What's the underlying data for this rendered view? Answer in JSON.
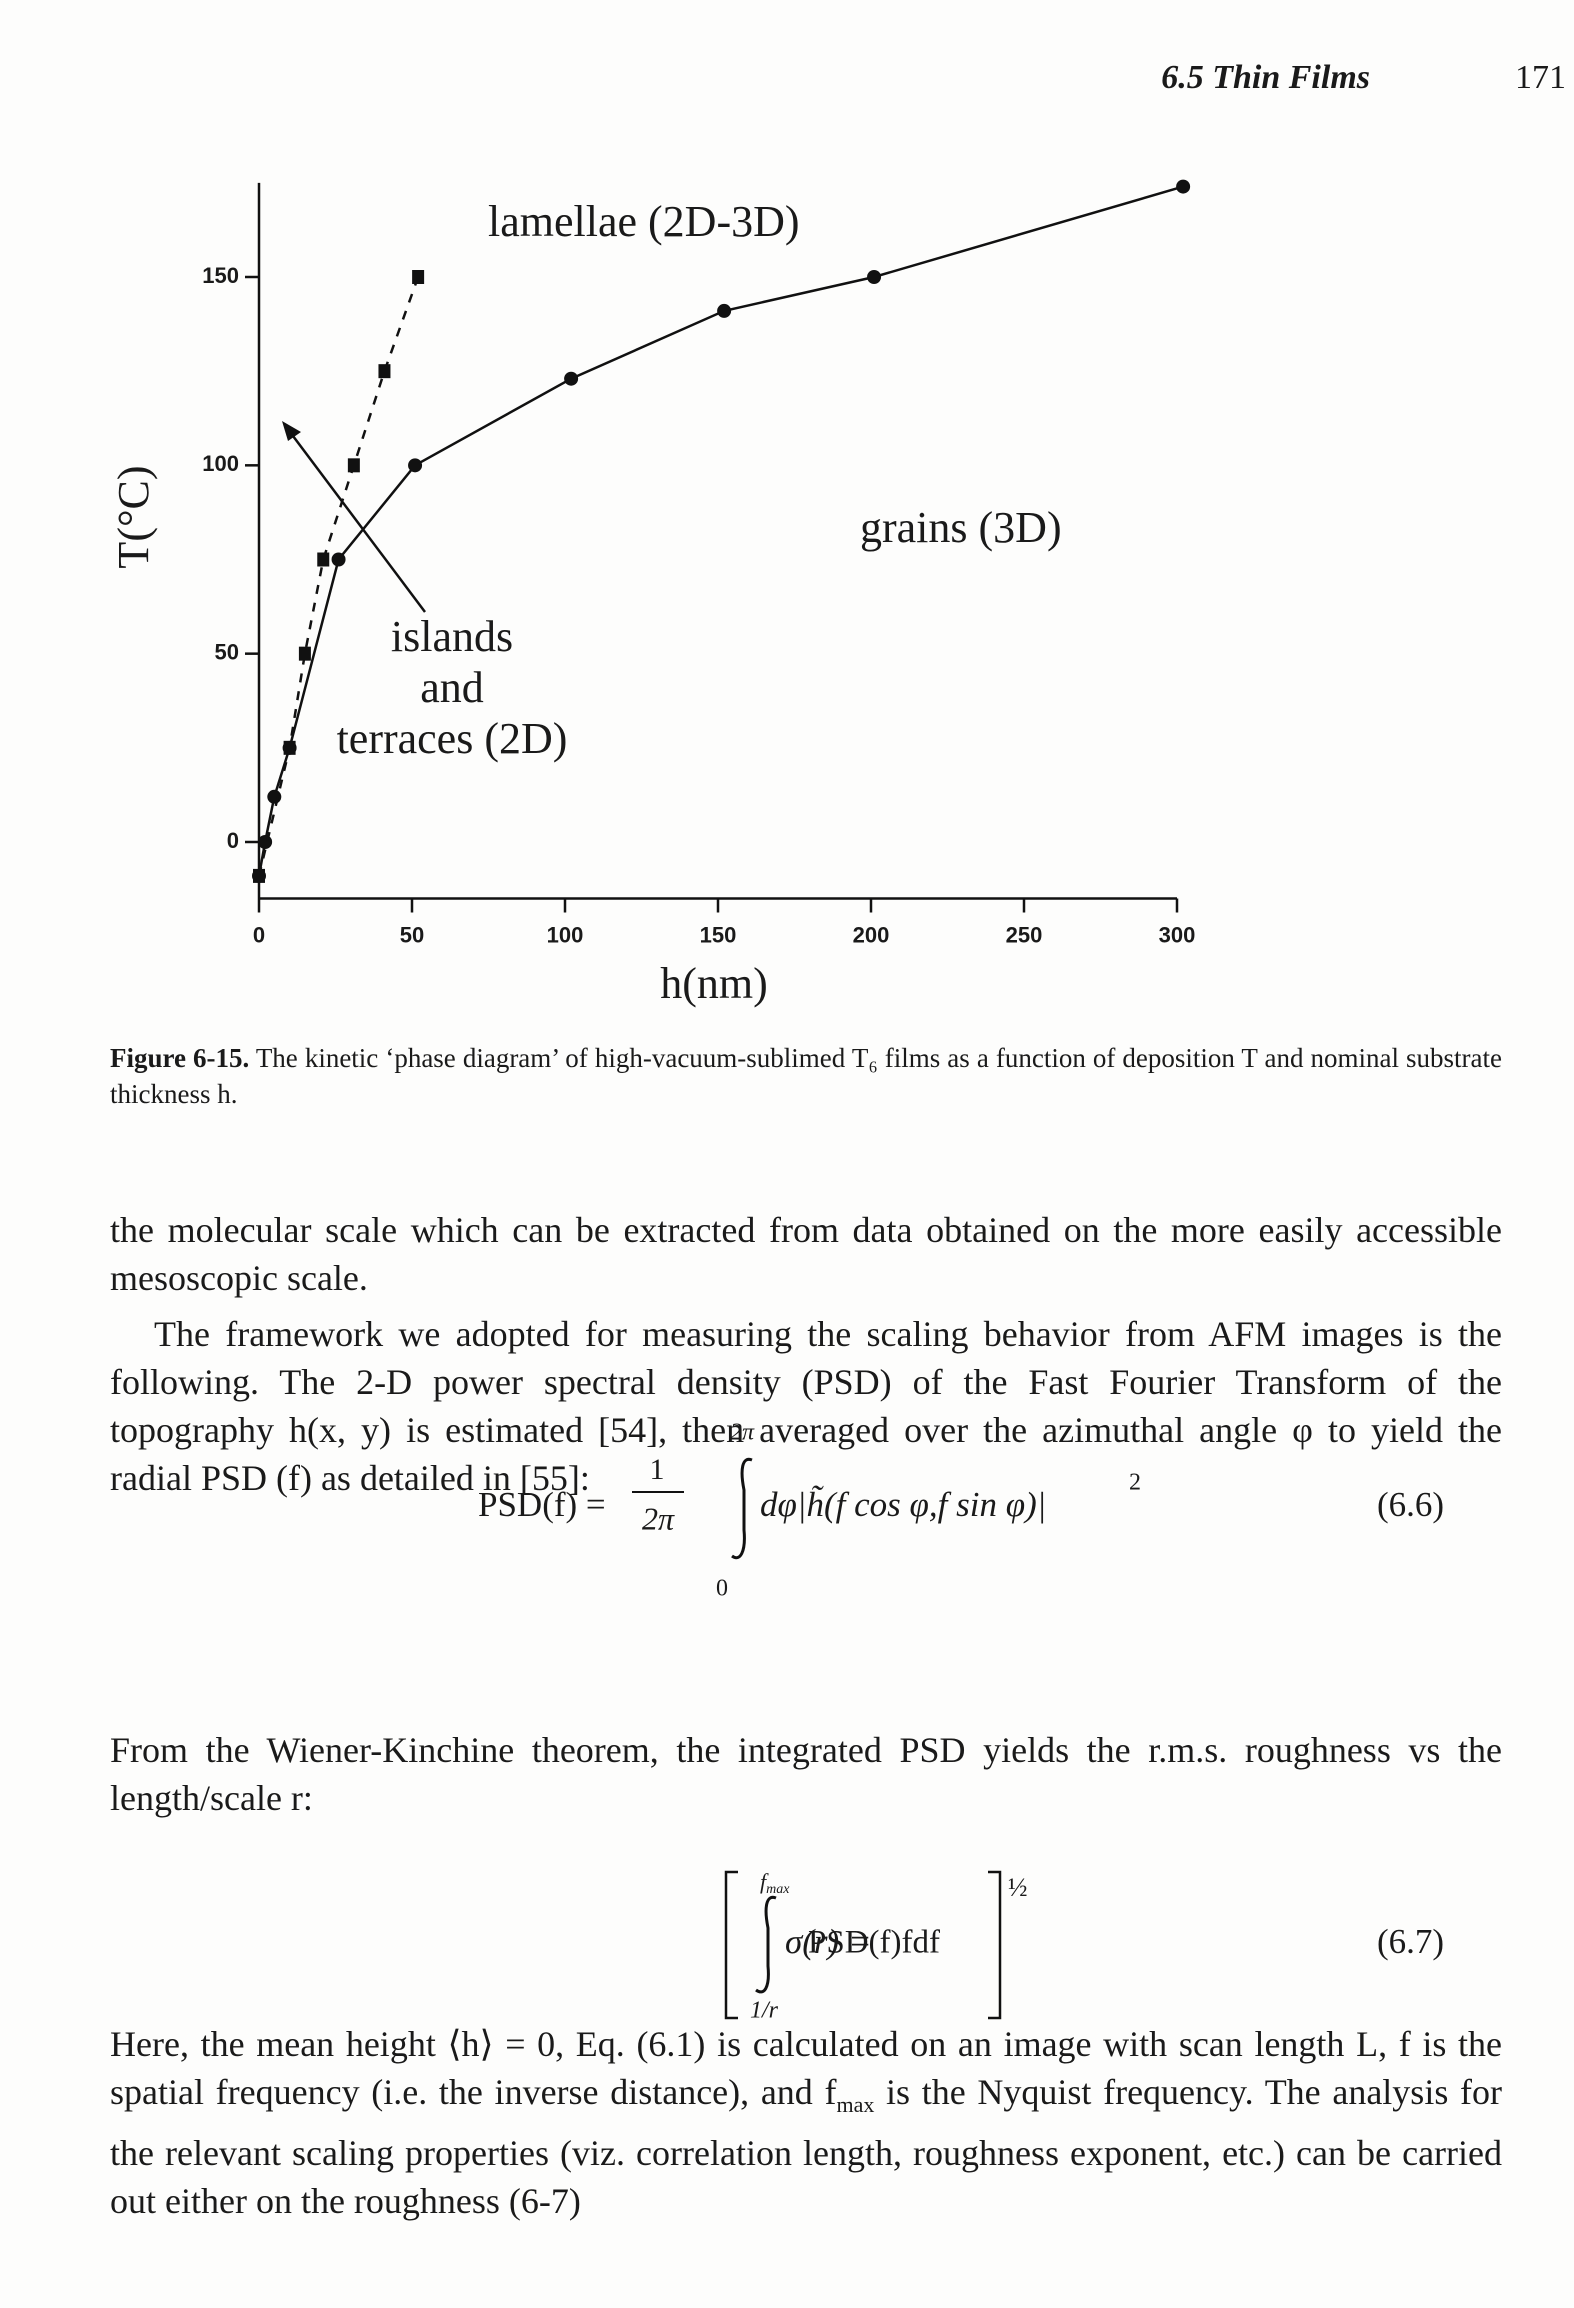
{
  "header": {
    "section": "6.5 Thin Films",
    "page": "171"
  },
  "chart_data": {
    "type": "line",
    "x_label": "h(nm)",
    "y_label": "T(°C)",
    "xlim": [
      0,
      300
    ],
    "xticks": [
      0,
      50,
      100,
      150,
      200,
      250,
      300
    ],
    "ylim": [
      -15,
      175
    ],
    "yticks": [
      0,
      50,
      100,
      150
    ],
    "series": [
      {
        "color": "#111111",
        "marker": "circle",
        "dashed": false,
        "x": [
          0,
          2,
          5,
          10,
          26,
          51,
          102,
          152,
          201,
          302
        ],
        "values": [
          -9,
          0,
          12,
          25,
          75,
          100,
          123,
          141,
          150,
          174
        ]
      },
      {
        "color": "#111111",
        "marker": "square",
        "dashed": true,
        "x": [
          0,
          10,
          15,
          21,
          31,
          41,
          52
        ],
        "values": [
          -9,
          25,
          50,
          75,
          100,
          125,
          150
        ]
      }
    ],
    "annotations": [
      "lamellae (2D-3D)",
      "grains (3D)",
      "islands",
      "and",
      "terraces (2D)"
    ]
  },
  "caption": {
    "label": "Figure 6-15.",
    "text": "The kinetic ‘phase diagram’ of high-vacuum-sublimed T₆ films as a function of deposition T and nominal substrate thickness h."
  },
  "paragraphs": [
    [
      "the molecular scale which can be extracted from data obtained on the more easily accessible mesoscopic scale."
    ],
    [
      "The framework we adopted for measuring the scaling behavior from AFM images is the following. The 2-D power spectral density (PSD) of the Fast Fourier Transform of the topography h(x, y) is estimated [54], then averaged over the azimuthal angle φ to yield the radial PSD (f) as detailed in [55]:"
    ],
    [
      "From the Wiener-Kinchine theorem, the integrated PSD yields the r.m.s. roughness vs the length/scale r:"
    ],
    [
      "Here, the mean height ⟨h⟩ = 0, Eq. (6.1) is calculated on an image with scan length L, f is the spatial frequency (i.e. the inverse distance), and f",
      {
        "sub": "max"
      },
      " is the Nyquist frequency. The analysis for the relevant scaling properties (viz. correlation length, roughness exponent, etc.) can be carried out either on the roughness (6-7)"
    ]
  ],
  "equations": [
    {
      "lhs": "PSD(f) =",
      "numerator": "1",
      "denominator": "2π",
      "upper": "2π",
      "lower": "0",
      "integrand": "dφ|h̃(f cos φ,f sin φ)|",
      "exponent": "2",
      "number": "(6.6)"
    },
    {
      "lhs": "σ(r) =",
      "upper": {
        "base": "f",
        "sub": "max"
      },
      "lower": "1/r",
      "integrand": "PSD(f)fdf",
      "exponent": "½",
      "number": "(6.7)"
    }
  ]
}
